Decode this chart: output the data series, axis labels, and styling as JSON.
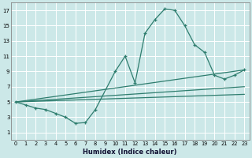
{
  "bg_color": "#cce8e8",
  "grid_color": "#ffffff",
  "line_color": "#2e7d6e",
  "xlabel": "Humidex (Indice chaleur)",
  "xlim": [
    -0.5,
    23.5
  ],
  "ylim": [
    0,
    18
  ],
  "yticks": [
    1,
    3,
    5,
    7,
    9,
    11,
    13,
    15,
    17
  ],
  "xticks": [
    0,
    1,
    2,
    3,
    4,
    5,
    6,
    7,
    8,
    9,
    10,
    11,
    12,
    13,
    14,
    15,
    16,
    17,
    18,
    19,
    20,
    21,
    22,
    23
  ],
  "main_curve_x": [
    0,
    1,
    2,
    3,
    4,
    5,
    6,
    7,
    8,
    10,
    11,
    12,
    13,
    14,
    15,
    16,
    17,
    18,
    19,
    20,
    21,
    22,
    23
  ],
  "main_curve_y": [
    5,
    4.6,
    4.2,
    4.0,
    3.5,
    3.0,
    2.2,
    2.3,
    4.0,
    9.0,
    11.0,
    7.5,
    14.0,
    15.8,
    17.2,
    17.0,
    15.0,
    12.5,
    11.5,
    8.5,
    8.0,
    8.5,
    9.2
  ],
  "reg_line1_x": [
    0,
    23
  ],
  "reg_line1_y": [
    5.0,
    9.2
  ],
  "reg_line2_x": [
    0,
    23
  ],
  "reg_line2_y": [
    5.0,
    7.0
  ],
  "reg_line3_x": [
    0,
    23
  ],
  "reg_line3_y": [
    5.0,
    6.0
  ],
  "figsize": [
    3.2,
    2.0
  ],
  "dpi": 100
}
